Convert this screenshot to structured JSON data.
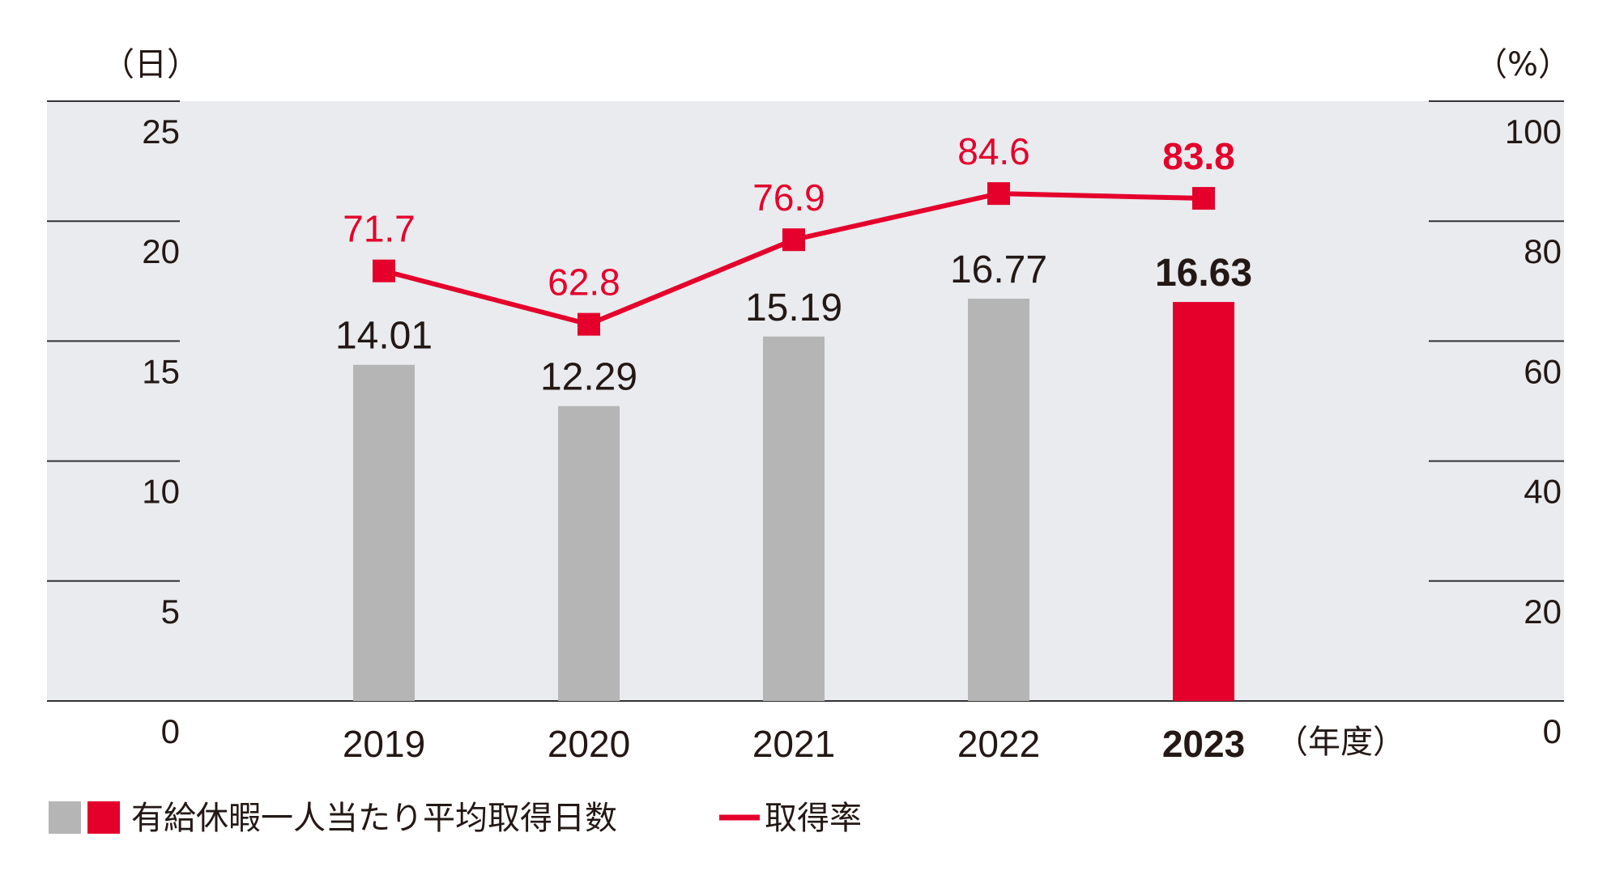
{
  "chart_data": {
    "type": "bar",
    "categories": [
      "2019",
      "2020",
      "2021",
      "2022",
      "2023"
    ],
    "x_unit": "（年度）",
    "y_left": {
      "unit": "（日）",
      "min": 0,
      "max": 25,
      "ticks": [
        "0",
        "5",
        "10",
        "15",
        "20",
        "25"
      ]
    },
    "y_right": {
      "unit": "（%）",
      "min": 0,
      "max": 100,
      "ticks": [
        "0",
        "20",
        "40",
        "60",
        "80",
        "100"
      ]
    },
    "series": [
      {
        "name": "有給休暇一人当たり平均取得日数",
        "type": "bar",
        "axis": "left",
        "values": [
          14.01,
          12.29,
          15.19,
          16.77,
          16.63
        ],
        "labels": [
          "14.01",
          "12.29",
          "15.19",
          "16.77",
          "16.63"
        ]
      },
      {
        "name": "取得率",
        "type": "line",
        "axis": "right",
        "values": [
          71.7,
          62.8,
          76.9,
          84.6,
          83.8
        ],
        "labels": [
          "71.7",
          "62.8",
          "76.9",
          "84.6",
          "83.8"
        ]
      }
    ],
    "highlight_category": "2023",
    "grid": true,
    "legend_position": "bottom-left",
    "colors": {
      "bar": "#b5b5b5",
      "bar_highlight": "#e4002b",
      "line": "#e4002b",
      "plot_background": "#e9ebee",
      "gridline": "#333333",
      "text": "#231815"
    }
  }
}
